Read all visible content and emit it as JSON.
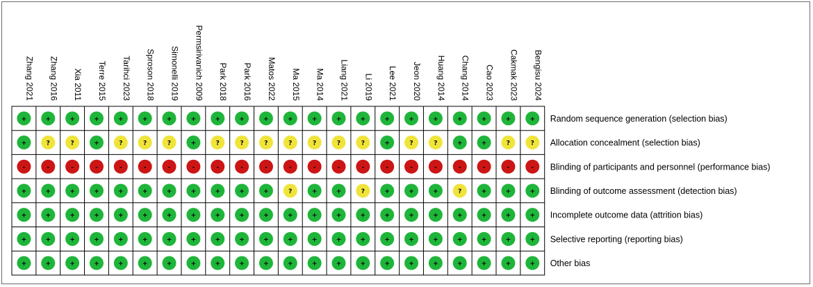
{
  "chart_data": {
    "type": "table",
    "studies": [
      "Zhang 2021",
      "Zhang 2016",
      "Xia 2011",
      "Terre 2015",
      "Tarihci 2023",
      "Sproson 2018",
      "Simonelli 2019",
      "Permsirivanich 2009",
      "Park 2018",
      "Park 2016",
      "Matos 2022",
      "Ma 2015",
      "Ma 2014",
      "Liang 2021",
      "Li 2019",
      "Lee 2021",
      "Jeon 2020",
      "Huang 2014",
      "Chang 2014",
      "Cao 2023",
      "Cakmak 2023",
      "Bengisu 2024"
    ],
    "domains": [
      "Random sequence generation (selection bias)",
      "Allocation concealment (selection bias)",
      "Blinding of participants and personnel (performance bias)",
      "Blinding of outcome assessment (detection bias)",
      "Incomplete outcome data (attrition bias)",
      "Selective reporting (reporting bias)",
      "Other bias"
    ],
    "legend": {
      "low": {
        "symbol": "+",
        "color": "#1fb53a"
      },
      "unclear": {
        "symbol": "?",
        "color": "#f0e43a"
      },
      "high": {
        "symbol": "-",
        "color": "#cc1515"
      }
    },
    "judgements": [
      [
        "low",
        "low",
        "low",
        "low",
        "low",
        "low",
        "low",
        "low",
        "low",
        "low",
        "low",
        "low",
        "low",
        "low",
        "low",
        "low",
        "low",
        "low",
        "low",
        "low",
        "low",
        "low"
      ],
      [
        "low",
        "unclear",
        "unclear",
        "low",
        "unclear",
        "unclear",
        "unclear",
        "low",
        "unclear",
        "unclear",
        "unclear",
        "unclear",
        "unclear",
        "unclear",
        "unclear",
        "low",
        "unclear",
        "unclear",
        "low",
        "low",
        "unclear",
        "unclear"
      ],
      [
        "high",
        "high",
        "high",
        "high",
        "high",
        "high",
        "high",
        "high",
        "high",
        "high",
        "high",
        "high",
        "high",
        "high",
        "high",
        "high",
        "high",
        "high",
        "high",
        "high",
        "high",
        "high"
      ],
      [
        "low",
        "low",
        "low",
        "low",
        "low",
        "low",
        "low",
        "low",
        "low",
        "low",
        "low",
        "unclear",
        "low",
        "low",
        "unclear",
        "low",
        "low",
        "low",
        "unclear",
        "low",
        "low",
        "low"
      ],
      [
        "low",
        "low",
        "low",
        "low",
        "low",
        "low",
        "low",
        "low",
        "low",
        "low",
        "low",
        "low",
        "low",
        "low",
        "low",
        "low",
        "low",
        "low",
        "low",
        "low",
        "low",
        "low"
      ],
      [
        "low",
        "low",
        "low",
        "low",
        "low",
        "low",
        "low",
        "low",
        "low",
        "low",
        "low",
        "low",
        "low",
        "low",
        "low",
        "low",
        "low",
        "low",
        "low",
        "low",
        "low",
        "low"
      ],
      [
        "low",
        "low",
        "low",
        "low",
        "low",
        "low",
        "low",
        "low",
        "low",
        "low",
        "low",
        "low",
        "low",
        "low",
        "low",
        "low",
        "low",
        "low",
        "low",
        "low",
        "low",
        "low"
      ]
    ]
  }
}
